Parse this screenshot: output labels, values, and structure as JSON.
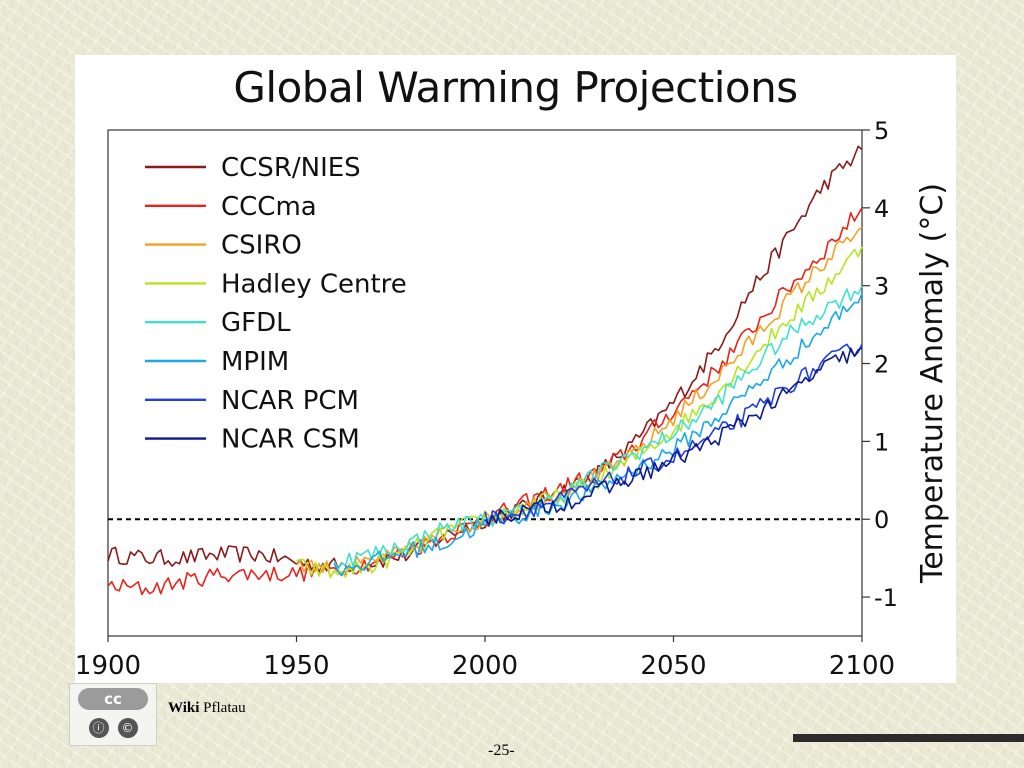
{
  "slide": {
    "footer_wiki": "Wiki",
    "footer_author": "Pflatau",
    "page_number": "-25-",
    "cc_badge_text": "cc",
    "cc_icons": [
      "ⓘ",
      "©"
    ]
  },
  "chart_data": {
    "type": "line",
    "title": "Global Warming Projections",
    "xlabel": "",
    "ylabel": "Temperature Anomaly (°C)",
    "xlim": [
      1900,
      2100
    ],
    "ylim": [
      -1.5,
      5
    ],
    "xticks": [
      1900,
      1950,
      2000,
      2050,
      2100
    ],
    "yticks": [
      -1,
      0,
      1,
      2,
      3,
      4,
      5
    ],
    "y_axis_side": "right",
    "grid": false,
    "legend_position": "top-left",
    "zero_line": "dashed",
    "series": [
      {
        "name": "CCSR/NIES",
        "color": "#8b1a1a",
        "x": [
          1900,
          1910,
          1920,
          1930,
          1940,
          1950,
          1960,
          1970,
          1980,
          1990,
          2000,
          2010,
          2020,
          2030,
          2040,
          2050,
          2060,
          2070,
          2080,
          2090,
          2100
        ],
        "y": [
          -0.45,
          -0.5,
          -0.5,
          -0.45,
          -0.45,
          -0.55,
          -0.6,
          -0.55,
          -0.45,
          -0.2,
          0.0,
          0.15,
          0.35,
          0.6,
          1.0,
          1.5,
          2.1,
          2.9,
          3.6,
          4.3,
          4.75
        ]
      },
      {
        "name": "CCCma",
        "color": "#e8231a",
        "x": [
          1900,
          1910,
          1920,
          1930,
          1940,
          1950,
          1960,
          1970,
          1980,
          1990,
          2000,
          2010,
          2020,
          2030,
          2040,
          2050,
          2060,
          2070,
          2080,
          2090,
          2100
        ],
        "y": [
          -0.85,
          -0.9,
          -0.8,
          -0.7,
          -0.7,
          -0.7,
          -0.65,
          -0.55,
          -0.4,
          -0.2,
          0.0,
          0.2,
          0.4,
          0.6,
          0.95,
          1.4,
          1.85,
          2.4,
          2.95,
          3.45,
          4.0
        ]
      },
      {
        "name": "CSIRO",
        "color": "#f5a020",
        "x": [
          1950,
          1960,
          1970,
          1980,
          1990,
          2000,
          2010,
          2020,
          2030,
          2040,
          2050,
          2060,
          2070,
          2080,
          2090,
          2100
        ],
        "y": [
          -0.55,
          -0.65,
          -0.55,
          -0.4,
          -0.15,
          0.0,
          0.15,
          0.35,
          0.55,
          0.85,
          1.3,
          1.75,
          2.25,
          2.8,
          3.3,
          3.75
        ]
      },
      {
        "name": "Hadley Centre",
        "color": "#b5e61d",
        "x": [
          1950,
          1960,
          1970,
          1980,
          1990,
          2000,
          2010,
          2020,
          2030,
          2040,
          2050,
          2060,
          2070,
          2080,
          2090,
          2100
        ],
        "y": [
          -0.6,
          -0.7,
          -0.6,
          -0.4,
          -0.15,
          0.0,
          0.15,
          0.3,
          0.5,
          0.8,
          1.15,
          1.55,
          2.05,
          2.55,
          3.0,
          3.5
        ]
      },
      {
        "name": "GFDL",
        "color": "#3ee0d0",
        "x": [
          1960,
          1970,
          1980,
          1990,
          2000,
          2010,
          2020,
          2030,
          2040,
          2050,
          2060,
          2070,
          2080,
          2090,
          2100
        ],
        "y": [
          -0.55,
          -0.45,
          -0.3,
          -0.1,
          0.0,
          0.1,
          0.3,
          0.6,
          0.85,
          1.1,
          1.45,
          1.9,
          2.35,
          2.7,
          3.0
        ]
      },
      {
        "name": "MPIM",
        "color": "#1aa8e8",
        "x": [
          1960,
          1970,
          1980,
          1990,
          2000,
          2010,
          2020,
          2030,
          2040,
          2050,
          2060,
          2070,
          2080,
          2090,
          2100
        ],
        "y": [
          -0.65,
          -0.55,
          -0.4,
          -0.3,
          -0.05,
          0.05,
          0.2,
          0.4,
          0.65,
          0.9,
          1.25,
          1.65,
          2.05,
          2.45,
          2.9
        ]
      },
      {
        "name": "NCAR PCM",
        "color": "#1f3fe0",
        "x": [
          2000,
          2010,
          2020,
          2030,
          2040,
          2050,
          2060,
          2070,
          2080,
          2090,
          2100
        ],
        "y": [
          0.0,
          0.1,
          0.25,
          0.45,
          0.6,
          0.8,
          1.05,
          1.35,
          1.7,
          2.0,
          2.25
        ]
      },
      {
        "name": "NCAR CSM",
        "color": "#0a1a8c",
        "x": [
          2000,
          2010,
          2020,
          2030,
          2040,
          2050,
          2060,
          2070,
          2080,
          2090,
          2100
        ],
        "y": [
          0.0,
          0.1,
          0.2,
          0.35,
          0.55,
          0.75,
          1.0,
          1.3,
          1.6,
          1.95,
          2.2
        ]
      }
    ]
  }
}
